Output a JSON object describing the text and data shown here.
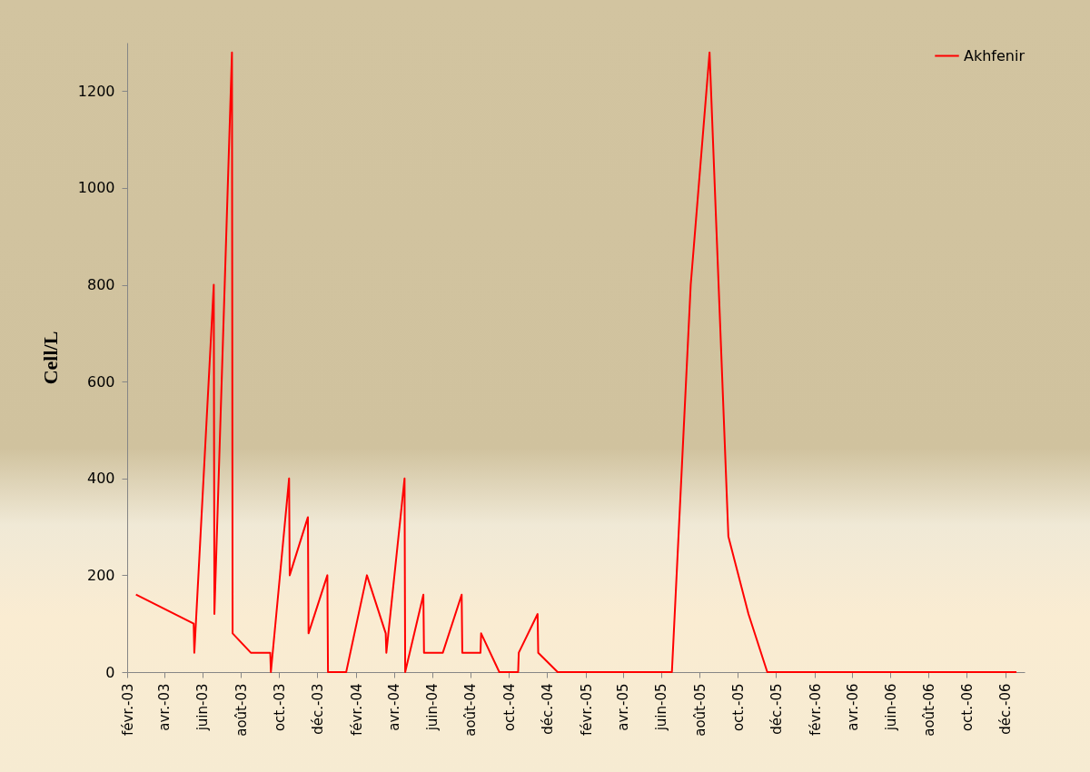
{
  "chart_data": {
    "type": "line",
    "ylabel": "Cell/L",
    "legend": "top right",
    "x": [
      "2003-02-15",
      "2003-05-18",
      "2003-05-19",
      "2003-06-19",
      "2003-06-20",
      "2003-07-18",
      "2003-07-19",
      "2003-08-17",
      "2003-09-17",
      "2003-09-18",
      "2003-10-17",
      "2003-10-18",
      "2003-11-16",
      "2003-11-17",
      "2003-12-17",
      "2003-12-18",
      "2004-01-16",
      "2004-02-18",
      "2004-03-19",
      "2004-03-20",
      "2004-04-18",
      "2004-04-19",
      "2004-05-18",
      "2004-05-19",
      "2004-06-18",
      "2004-07-18",
      "2004-07-19",
      "2004-08-17",
      "2004-08-18",
      "2004-09-16",
      "2004-10-16",
      "2004-10-17",
      "2004-11-16",
      "2004-11-17",
      "2004-12-18",
      "2005-06-18",
      "2005-07-18",
      "2005-08-17",
      "2005-09-16",
      "2005-10-18",
      "2005-11-17",
      "2006-12-19"
    ],
    "series": [
      {
        "name": "Akhfenir",
        "color": "#ff0000",
        "values": [
          160,
          100,
          40,
          800,
          120,
          1280,
          80,
          40,
          40,
          0,
          400,
          200,
          320,
          80,
          200,
          0,
          0,
          200,
          80,
          40,
          400,
          0,
          160,
          40,
          40,
          160,
          40,
          40,
          80,
          0,
          0,
          40,
          120,
          40,
          0,
          0,
          800,
          1280,
          280,
          120,
          0,
          0
        ]
      }
    ],
    "xlim": [
      "2003-02-01",
      "2007-01-01"
    ],
    "xticks": [
      {
        "value": "2003-02-01",
        "label": "févr.-03"
      },
      {
        "value": "2003-04-01",
        "label": "avr.-03"
      },
      {
        "value": "2003-06-01",
        "label": "juin-03"
      },
      {
        "value": "2003-08-01",
        "label": "août-03"
      },
      {
        "value": "2003-10-01",
        "label": "oct.-03"
      },
      {
        "value": "2003-12-01",
        "label": "déc.-03"
      },
      {
        "value": "2004-02-01",
        "label": "févr.-04"
      },
      {
        "value": "2004-04-01",
        "label": "avr.-04"
      },
      {
        "value": "2004-06-01",
        "label": "juin-04"
      },
      {
        "value": "2004-08-01",
        "label": "août-04"
      },
      {
        "value": "2004-10-01",
        "label": "oct.-04"
      },
      {
        "value": "2004-12-01",
        "label": "déc.-04"
      },
      {
        "value": "2005-02-01",
        "label": "févr.-05"
      },
      {
        "value": "2005-04-01",
        "label": "avr.-05"
      },
      {
        "value": "2005-06-01",
        "label": "juin-05"
      },
      {
        "value": "2005-08-01",
        "label": "août-05"
      },
      {
        "value": "2005-10-01",
        "label": "oct.-05"
      },
      {
        "value": "2005-12-01",
        "label": "déc.-05"
      },
      {
        "value": "2006-02-01",
        "label": "févr.-06"
      },
      {
        "value": "2006-04-01",
        "label": "avr.-06"
      },
      {
        "value": "2006-06-01",
        "label": "juin-06"
      },
      {
        "value": "2006-08-01",
        "label": "août-06"
      },
      {
        "value": "2006-10-01",
        "label": "oct.-06"
      },
      {
        "value": "2006-12-01",
        "label": "déc.-06"
      }
    ],
    "ylim": [
      0,
      1300
    ],
    "yticks": [
      0,
      200,
      400,
      600,
      800,
      1000,
      1200
    ]
  }
}
